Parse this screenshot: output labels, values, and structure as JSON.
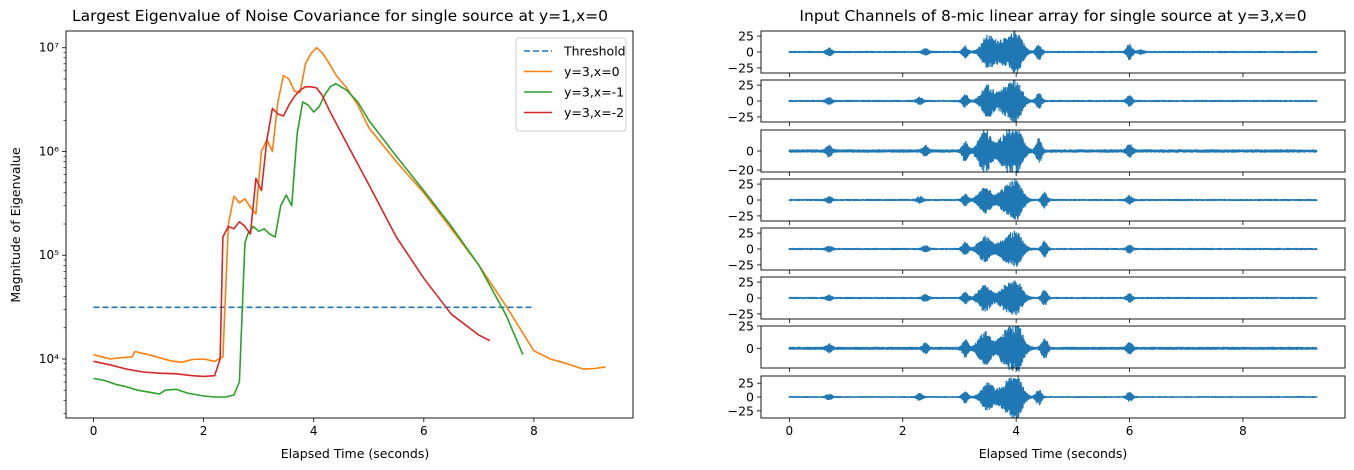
{
  "chart_data": [
    {
      "type": "line",
      "title": "Largest Eigenvalue of Noise Covariance for single source at y=1,x=0",
      "xlabel": "Elapsed Time (seconds)",
      "ylabel": "Magnitude of Eigenvalue",
      "xscale": "linear",
      "yscale": "log",
      "xlim": [
        -0.5,
        9.8
      ],
      "ylim": [
        2700,
        14500000
      ],
      "xticks": [
        0,
        2,
        4,
        6,
        8
      ],
      "yticks": [
        10000,
        100000,
        1000000,
        10000000
      ],
      "ytick_labels": [
        "10⁴",
        "10⁵",
        "10⁶",
        "10⁷"
      ],
      "grid": false,
      "legend": "top-right",
      "series": [
        {
          "name": "Threshold",
          "color": "#1f77b4",
          "dash": "dashed",
          "x": [
            0,
            8
          ],
          "y": [
            31500,
            31500
          ]
        },
        {
          "name": "y=3,x=0",
          "color": "#ff7f0e",
          "x": [
            0,
            0.3,
            0.5,
            0.7,
            0.75,
            1.0,
            1.2,
            1.4,
            1.6,
            1.8,
            2.0,
            2.2,
            2.35,
            2.45,
            2.55,
            2.65,
            2.75,
            2.85,
            2.95,
            3.05,
            3.15,
            3.25,
            3.35,
            3.45,
            3.55,
            3.65,
            3.75,
            3.85,
            3.95,
            4.05,
            4.15,
            4.25,
            4.4,
            4.6,
            4.8,
            5.0,
            5.5,
            6.0,
            6.5,
            7.0,
            7.5,
            8.0,
            8.3,
            8.6,
            8.9,
            9.1,
            9.3
          ],
          "y": [
            11000,
            10000,
            10300,
            10500,
            11800,
            11000,
            10300,
            9600,
            9300,
            9900,
            10000,
            9500,
            10500,
            200000,
            370000,
            320000,
            350000,
            290000,
            250000,
            1000000,
            1300000,
            1000000,
            3000000,
            5400000,
            5000000,
            3800000,
            3700000,
            7000000,
            8800000,
            10000000,
            9000000,
            7500000,
            5500000,
            4100000,
            2800000,
            1700000,
            800000,
            400000,
            180000,
            80000,
            32000,
            12000,
            10000,
            9000,
            8000,
            8100,
            8400
          ]
        },
        {
          "name": "y=3,x=-1",
          "color": "#2ca02c",
          "x": [
            0,
            0.2,
            0.4,
            0.6,
            0.8,
            1.0,
            1.2,
            1.3,
            1.5,
            1.7,
            1.9,
            2.0,
            2.2,
            2.4,
            2.55,
            2.65,
            2.75,
            2.8,
            2.9,
            3.0,
            3.1,
            3.2,
            3.3,
            3.4,
            3.5,
            3.6,
            3.7,
            3.8,
            3.9,
            4.0,
            4.1,
            4.2,
            4.3,
            4.4,
            4.6,
            4.8,
            5.0,
            5.5,
            6.0,
            6.5,
            7.0,
            7.5,
            7.8
          ],
          "y": [
            6500,
            6200,
            5700,
            5400,
            5000,
            4800,
            4600,
            5000,
            5100,
            4700,
            4500,
            4400,
            4300,
            4300,
            4500,
            6000,
            130000,
            160000,
            190000,
            170000,
            180000,
            160000,
            150000,
            300000,
            380000,
            300000,
            1500000,
            3000000,
            2800000,
            2400000,
            2700000,
            3500000,
            4200000,
            4500000,
            3900000,
            3000000,
            2000000,
            900000,
            420000,
            190000,
            80000,
            26000,
            11000
          ]
        },
        {
          "name": "y=3,x=-2",
          "color": "#d62728",
          "x": [
            0,
            0.3,
            0.6,
            0.9,
            1.2,
            1.5,
            1.8,
            2.0,
            2.2,
            2.3,
            2.35,
            2.45,
            2.55,
            2.65,
            2.75,
            2.85,
            2.95,
            3.05,
            3.15,
            3.25,
            3.35,
            3.45,
            3.55,
            3.65,
            3.75,
            3.85,
            3.95,
            4.05,
            4.15,
            4.3,
            4.6,
            5.0,
            5.5,
            6.0,
            6.5,
            7.0,
            7.2
          ],
          "y": [
            9500,
            8800,
            8000,
            7500,
            7300,
            7200,
            6900,
            6800,
            6900,
            10000,
            150000,
            190000,
            180000,
            210000,
            190000,
            160000,
            550000,
            420000,
            1300000,
            2600000,
            2300000,
            2200000,
            2800000,
            3400000,
            3900000,
            4200000,
            4200000,
            4100000,
            3500000,
            2400000,
            1200000,
            480000,
            150000,
            60000,
            27000,
            17000,
            15000
          ]
        }
      ]
    },
    {
      "type": "line",
      "title": "Input Channels of 8-mic linear array for single source at y=3,x=0",
      "xlabel": "Elapsed Time (seconds)",
      "xlim": [
        -0.5,
        9.8
      ],
      "xticks": [
        0,
        2,
        4,
        6,
        8
      ],
      "grid": false,
      "duration_seconds": 9.3,
      "waveform_color": "#1f77b4",
      "channels": [
        {
          "ylim": [
            -33,
            33
          ],
          "yticks": [
            25,
            0,
            -25
          ],
          "noise_amp": 1.8,
          "bursts": [
            [
              0.7,
              6
            ],
            [
              2.4,
              5
            ],
            [
              3.1,
              9
            ],
            [
              3.5,
              25
            ],
            [
              3.75,
              18
            ],
            [
              4.0,
              33
            ],
            [
              4.4,
              12
            ],
            [
              6.0,
              12
            ],
            [
              6.2,
              3
            ]
          ]
        },
        {
          "ylim": [
            -33,
            33
          ],
          "yticks": [
            25,
            0,
            -25
          ],
          "noise_amp": 1.8,
          "bursts": [
            [
              0.7,
              5
            ],
            [
              2.3,
              5
            ],
            [
              3.1,
              10
            ],
            [
              3.5,
              25
            ],
            [
              3.8,
              18
            ],
            [
              4.0,
              30
            ],
            [
              4.4,
              12
            ],
            [
              6.0,
              8
            ]
          ]
        },
        {
          "ylim": [
            -22,
            22
          ],
          "yticks": [
            0,
            -20
          ],
          "noise_amp": 1.8,
          "bursts": [
            [
              0.7,
              5
            ],
            [
              2.4,
              5
            ],
            [
              3.1,
              10
            ],
            [
              3.45,
              22
            ],
            [
              3.8,
              16
            ],
            [
              4.0,
              24
            ],
            [
              4.4,
              12
            ],
            [
              6.0,
              6
            ]
          ]
        },
        {
          "ylim": [
            -33,
            33
          ],
          "yticks": [
            25,
            0,
            -25
          ],
          "noise_amp": 1.8,
          "bursts": [
            [
              0.7,
              5
            ],
            [
              2.3,
              5
            ],
            [
              3.1,
              9
            ],
            [
              3.45,
              20
            ],
            [
              3.8,
              16
            ],
            [
              4.0,
              30
            ],
            [
              4.5,
              12
            ],
            [
              6.0,
              6
            ]
          ]
        },
        {
          "ylim": [
            -33,
            33
          ],
          "yticks": [
            25,
            0,
            -25
          ],
          "noise_amp": 1.8,
          "bursts": [
            [
              0.7,
              4
            ],
            [
              2.4,
              5
            ],
            [
              3.1,
              10
            ],
            [
              3.45,
              20
            ],
            [
              3.8,
              16
            ],
            [
              4.0,
              25
            ],
            [
              4.5,
              12
            ],
            [
              6.0,
              6
            ]
          ]
        },
        {
          "ylim": [
            -33,
            33
          ],
          "yticks": [
            25,
            0,
            -25
          ],
          "noise_amp": 1.8,
          "bursts": [
            [
              0.7,
              4
            ],
            [
              2.4,
              5
            ],
            [
              3.1,
              9
            ],
            [
              3.45,
              20
            ],
            [
              3.8,
              16
            ],
            [
              4.0,
              25
            ],
            [
              4.5,
              12
            ],
            [
              6.0,
              6
            ]
          ]
        },
        {
          "ylim": [
            -22,
            25
          ],
          "yticks": [
            25,
            0
          ],
          "noise_amp": 1.8,
          "bursts": [
            [
              0.7,
              4
            ],
            [
              2.4,
              5
            ],
            [
              3.1,
              9
            ],
            [
              3.45,
              18
            ],
            [
              3.8,
              16
            ],
            [
              4.0,
              30
            ],
            [
              4.5,
              12
            ],
            [
              6.0,
              6
            ]
          ]
        },
        {
          "ylim": [
            -38,
            38
          ],
          "yticks": [
            25,
            0,
            -25
          ],
          "noise_amp": 1.8,
          "bursts": [
            [
              0.7,
              5
            ],
            [
              2.3,
              6
            ],
            [
              3.1,
              10
            ],
            [
              3.5,
              25
            ],
            [
              3.8,
              20
            ],
            [
              4.0,
              40
            ],
            [
              4.4,
              14
            ],
            [
              6.0,
              8
            ]
          ]
        }
      ]
    }
  ]
}
